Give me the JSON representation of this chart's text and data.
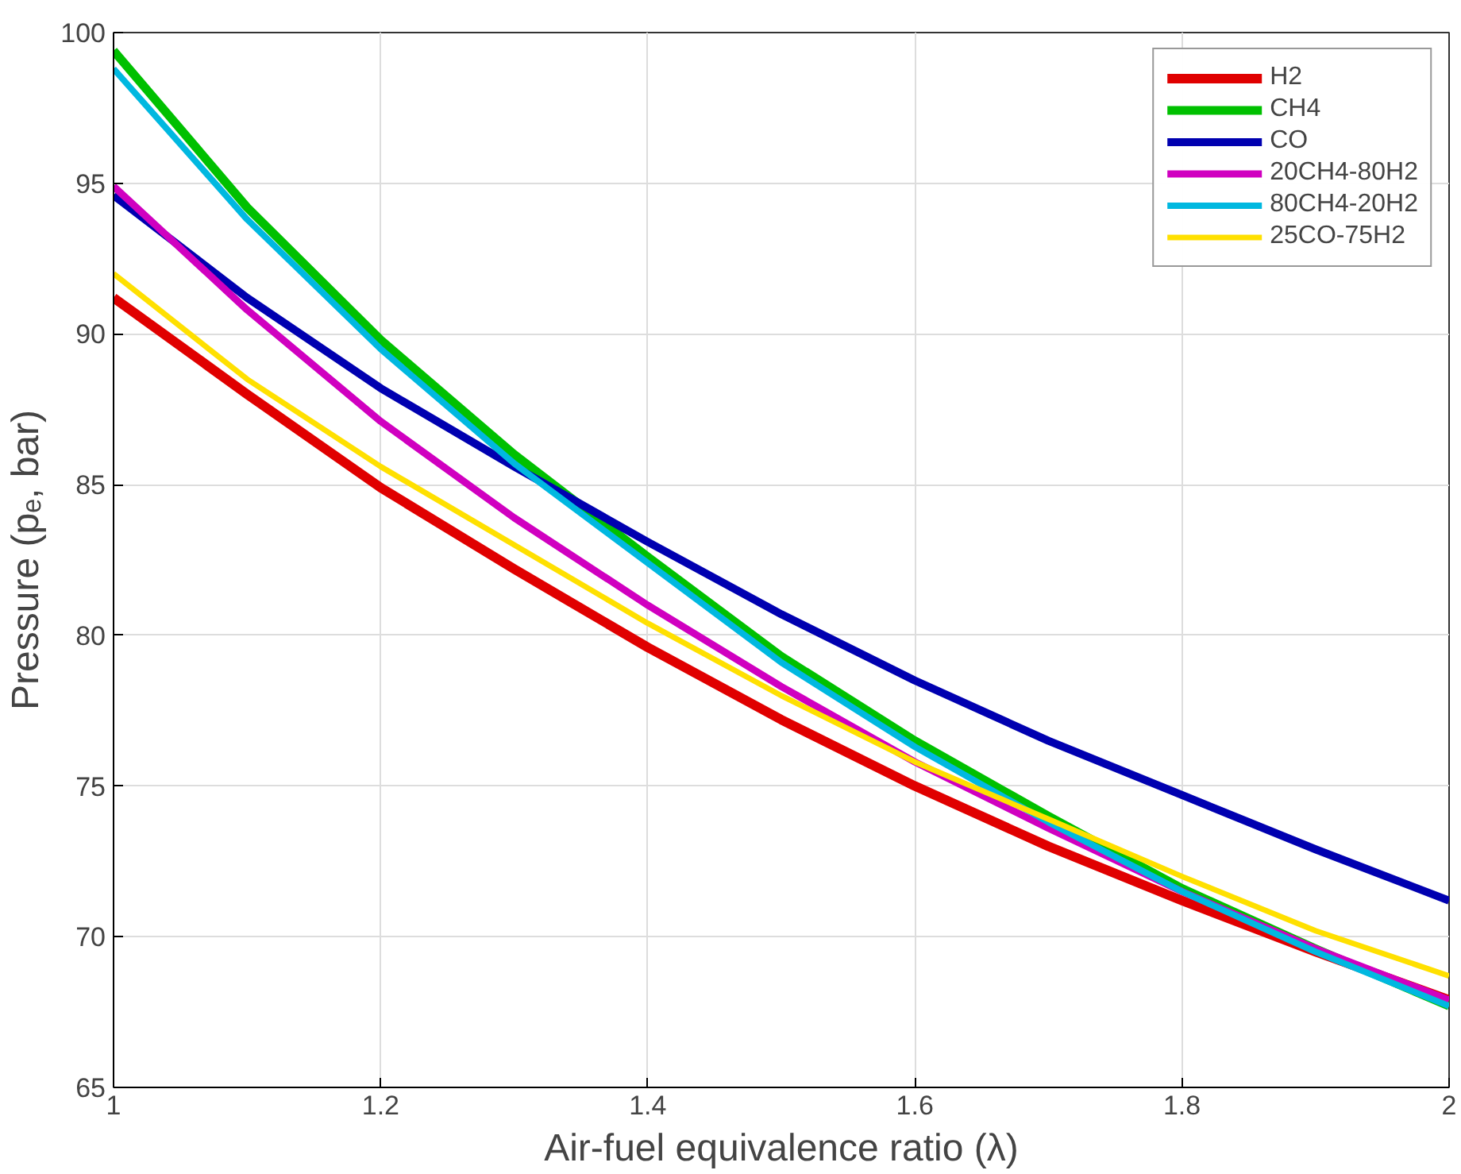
{
  "chart_data": {
    "type": "line",
    "xlabel": "Air-fuel equivalence ratio (λ)",
    "ylabel": "Pressure (pₑ, bar)",
    "x": [
      1,
      1.1,
      1.2,
      1.3,
      1.4,
      1.5,
      1.6,
      1.7,
      1.8,
      1.9,
      2
    ],
    "series": [
      {
        "name": "H2",
        "color": "#e00000",
        "values": [
          91.2,
          88.0,
          84.9,
          82.2,
          79.6,
          77.2,
          75.0,
          73.0,
          71.2,
          69.5,
          67.9
        ]
      },
      {
        "name": "CH4",
        "color": "#00c000",
        "values": [
          99.4,
          94.2,
          89.8,
          86.0,
          82.6,
          79.3,
          76.5,
          74.0,
          71.6,
          69.6,
          67.7
        ]
      },
      {
        "name": "CO",
        "color": "#0000b0",
        "values": [
          94.6,
          91.2,
          88.2,
          85.6,
          83.1,
          80.7,
          78.5,
          76.5,
          74.7,
          72.9,
          71.2
        ]
      },
      {
        "name": "20CH4-80H2",
        "color": "#d000c0",
        "values": [
          94.9,
          90.8,
          87.1,
          83.9,
          81.0,
          78.3,
          75.8,
          73.6,
          71.5,
          69.6,
          67.9
        ]
      },
      {
        "name": "80CH4-20H2",
        "color": "#00b8e0",
        "values": [
          98.8,
          93.8,
          89.5,
          85.7,
          82.4,
          79.1,
          76.3,
          73.8,
          71.5,
          69.5,
          67.7
        ]
      },
      {
        "name": "25CO-75H2",
        "color": "#ffe000",
        "values": [
          92.0,
          88.5,
          85.6,
          83.0,
          80.4,
          78.0,
          75.8,
          73.9,
          72.0,
          70.2,
          68.7
        ]
      }
    ],
    "xlim": [
      1,
      2
    ],
    "xticks": [
      1,
      1.2,
      1.4,
      1.6,
      1.8,
      2
    ],
    "ylim": [
      65,
      100
    ],
    "yticks": [
      65,
      70,
      75,
      80,
      85,
      90,
      95,
      100
    ],
    "grid": true,
    "legend": "top right",
    "marker": "none",
    "line_style": "solid"
  }
}
